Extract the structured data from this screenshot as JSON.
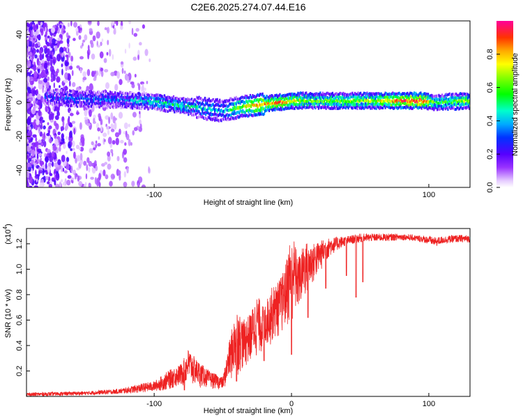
{
  "chart_data": [
    {
      "type": "heatmap",
      "title": "C2E6.2025.274.07.44.E16",
      "xlabel": "Height of straight line (km)",
      "ylabel": "Frequency (Hz)",
      "xlim": [
        -193,
        130
      ],
      "ylim": [
        -50,
        48
      ],
      "xticks": [
        -100,
        100
      ],
      "yticks": [
        -40,
        -20,
        0,
        20,
        40
      ],
      "colorbar": {
        "label": "Normalized spectral amplitude",
        "range": [
          0,
          1
        ],
        "ticks": [
          0.0,
          0.2,
          0.4,
          0.6,
          0.8
        ]
      },
      "ridge": {
        "x": [
          -175,
          -150,
          -125,
          -100,
          -80,
          -60,
          -50,
          -40,
          -30,
          -20,
          -10,
          0,
          10,
          30,
          60,
          80,
          95,
          105,
          130
        ],
        "freq": [
          3,
          2,
          1.5,
          0.5,
          -2,
          -4,
          -5,
          -3,
          -2,
          -1,
          0,
          1,
          1,
          1,
          1,
          1,
          1,
          0,
          1
        ],
        "amp": [
          0.25,
          0.3,
          0.3,
          0.45,
          0.45,
          0.4,
          0.35,
          0.6,
          0.75,
          0.8,
          0.85,
          0.75,
          0.6,
          0.6,
          0.65,
          0.9,
          0.9,
          0.5,
          0.65
        ]
      }
    },
    {
      "type": "line",
      "title": "",
      "xlabel": "Height of straight line (km)",
      "ylabel": "SNR (10 * v/v)",
      "y_multiplier": "(x10",
      "y_multiplier_exp": "4",
      "y_multiplier_close": ")",
      "xlim": [
        -193,
        130
      ],
      "ylim": [
        0,
        1.32
      ],
      "xticks": [
        -100,
        0,
        100
      ],
      "yticks": [
        0.2,
        0.4,
        0.6,
        0.8,
        1.0,
        1.2
      ],
      "color": "#ee2222",
      "envelope": {
        "x": [
          -193,
          -150,
          -125,
          -110,
          -100,
          -90,
          -80,
          -75,
          -70,
          -60,
          -50,
          -45,
          -40,
          -35,
          -30,
          -25,
          -20,
          -15,
          -10,
          -5,
          0,
          5,
          10,
          15,
          20,
          25,
          30,
          35,
          40,
          45,
          50,
          60,
          70,
          80,
          90,
          100,
          105,
          110,
          120,
          130
        ],
        "low": [
          0.0,
          0.01,
          0.02,
          0.03,
          0.04,
          0.05,
          0.07,
          0.08,
          0.07,
          0.06,
          0.05,
          0.1,
          0.15,
          0.2,
          0.25,
          0.3,
          0.35,
          0.4,
          0.45,
          0.5,
          0.55,
          0.65,
          0.75,
          0.85,
          0.95,
          1.05,
          1.12,
          1.16,
          1.19,
          1.2,
          1.21,
          1.22,
          1.22,
          1.23,
          1.22,
          1.2,
          1.18,
          1.2,
          1.21,
          1.21
        ],
        "high": [
          0.03,
          0.04,
          0.06,
          0.1,
          0.12,
          0.2,
          0.26,
          0.38,
          0.3,
          0.2,
          0.15,
          0.45,
          0.7,
          0.6,
          0.65,
          0.8,
          0.7,
          0.85,
          0.9,
          1.0,
          1.32,
          1.1,
          1.22,
          1.2,
          1.22,
          1.24,
          1.25,
          1.26,
          1.26,
          1.27,
          1.28,
          1.28,
          1.28,
          1.28,
          1.27,
          1.26,
          1.25,
          1.26,
          1.27,
          1.27
        ]
      },
      "dips": [
        {
          "x": -78,
          "y": 0.05
        },
        {
          "x": -40,
          "y": 0.12
        },
        {
          "x": -20,
          "y": 0.28
        },
        {
          "x": 0,
          "y": 0.33
        },
        {
          "x": 12,
          "y": 0.62
        },
        {
          "x": 25,
          "y": 0.85
        },
        {
          "x": 40,
          "y": 0.95
        },
        {
          "x": 47,
          "y": 0.78
        },
        {
          "x": 52,
          "y": 0.9
        }
      ]
    }
  ]
}
